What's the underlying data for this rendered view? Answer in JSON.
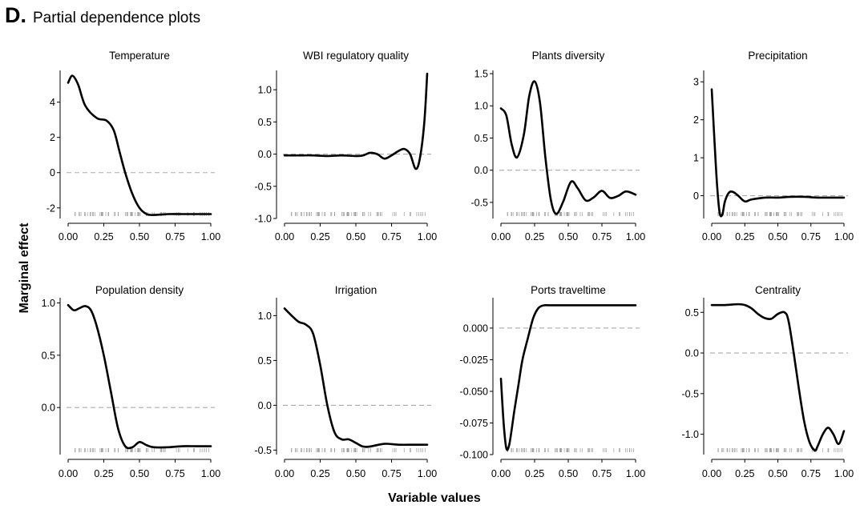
{
  "header": {
    "letter": "D.",
    "title": "Partial dependence plots"
  },
  "ylabel": "Marginal effect",
  "xlabel": "Variable values",
  "chart_data": [
    {
      "type": "line",
      "title": "Temperature",
      "xticks": [
        "0.00",
        "0.25",
        "0.50",
        "0.75",
        "1.00"
      ],
      "yticks": [
        {
          "v": 4,
          "l": "4"
        },
        {
          "v": 2,
          "l": "2"
        },
        {
          "v": 0,
          "l": "0"
        },
        {
          "v": -2,
          "l": "-2"
        }
      ],
      "xlim": [
        0,
        1
      ],
      "ylim": [
        -2.6,
        5.8
      ],
      "reference_line": 0,
      "x": [
        0,
        0.03,
        0.07,
        0.12,
        0.2,
        0.27,
        0.32,
        0.36,
        0.4,
        0.45,
        0.5,
        0.55,
        0.6,
        0.7,
        0.8,
        0.9,
        1.0
      ],
      "y": [
        5.1,
        5.5,
        5.0,
        3.8,
        3.1,
        2.95,
        2.4,
        1.2,
        0.0,
        -1.2,
        -2.0,
        -2.35,
        -2.4,
        -2.35,
        -2.35,
        -2.35,
        -2.35
      ]
    },
    {
      "type": "line",
      "title": "WBI regulatory quality",
      "xticks": [
        "0.00",
        "0.25",
        "0.50",
        "0.75",
        "1.00"
      ],
      "yticks": [
        {
          "v": 1.0,
          "l": "1.0"
        },
        {
          "v": 0.5,
          "l": "0.5"
        },
        {
          "v": 0.0,
          "l": "0.0"
        },
        {
          "v": -0.5,
          "l": "-0.5"
        },
        {
          "v": -1.0,
          "l": "-1.0"
        }
      ],
      "xlim": [
        0,
        1
      ],
      "ylim": [
        -1.0,
        1.3
      ],
      "reference_line": 0,
      "x": [
        0,
        0.1,
        0.2,
        0.3,
        0.4,
        0.5,
        0.55,
        0.6,
        0.65,
        0.7,
        0.75,
        0.8,
        0.84,
        0.88,
        0.92,
        0.95,
        0.98,
        1.0
      ],
      "y": [
        -0.02,
        -0.02,
        -0.02,
        -0.03,
        -0.02,
        -0.03,
        -0.02,
        0.02,
        0.0,
        -0.07,
        -0.02,
        0.05,
        0.08,
        0.0,
        -0.23,
        -0.05,
        0.5,
        1.25
      ]
    },
    {
      "type": "line",
      "title": "Plants diversity",
      "xticks": [
        "0.00",
        "0.25",
        "0.50",
        "0.75",
        "1.00"
      ],
      "yticks": [
        {
          "v": 1.5,
          "l": "1.5"
        },
        {
          "v": 1.0,
          "l": "1.0"
        },
        {
          "v": 0.5,
          "l": "0.5"
        },
        {
          "v": 0.0,
          "l": "0.0"
        },
        {
          "v": -0.5,
          "l": "-0.5"
        }
      ],
      "xlim": [
        0,
        1
      ],
      "ylim": [
        -0.75,
        1.55
      ],
      "reference_line": 0,
      "x": [
        0,
        0.04,
        0.08,
        0.12,
        0.17,
        0.21,
        0.25,
        0.29,
        0.33,
        0.37,
        0.41,
        0.46,
        0.52,
        0.57,
        0.63,
        0.69,
        0.75,
        0.81,
        0.87,
        0.93,
        1.0
      ],
      "y": [
        0.96,
        0.85,
        0.4,
        0.2,
        0.55,
        1.15,
        1.38,
        1.05,
        0.2,
        -0.45,
        -0.68,
        -0.5,
        -0.18,
        -0.28,
        -0.47,
        -0.42,
        -0.32,
        -0.43,
        -0.4,
        -0.33,
        -0.38
      ]
    },
    {
      "type": "line",
      "title": "Precipitation",
      "xticks": [
        "0.00",
        "0.25",
        "0.50",
        "0.75",
        "1.00"
      ],
      "yticks": [
        {
          "v": 3,
          "l": "3"
        },
        {
          "v": 2,
          "l": "2"
        },
        {
          "v": 1,
          "l": "1"
        },
        {
          "v": 0,
          "l": "0"
        }
      ],
      "xlim": [
        0,
        1
      ],
      "ylim": [
        -0.6,
        3.3
      ],
      "reference_line": 0,
      "x": [
        0,
        0.02,
        0.04,
        0.06,
        0.08,
        0.1,
        0.13,
        0.16,
        0.2,
        0.25,
        0.3,
        0.4,
        0.5,
        0.6,
        0.7,
        0.8,
        0.9,
        1.0
      ],
      "y": [
        2.8,
        1.5,
        0.3,
        -0.45,
        -0.5,
        -0.15,
        0.08,
        0.1,
        0.0,
        -0.15,
        -0.1,
        -0.05,
        -0.05,
        -0.03,
        -0.03,
        -0.05,
        -0.05,
        -0.05
      ]
    },
    {
      "type": "line",
      "title": "Population density",
      "xticks": [
        "0.00",
        "0.25",
        "0.50",
        "0.75",
        "1.00"
      ],
      "yticks": [
        {
          "v": 1.0,
          "l": "1.0"
        },
        {
          "v": 0.5,
          "l": "0.5"
        },
        {
          "v": 0.0,
          "l": "0.0"
        }
      ],
      "xlim": [
        0,
        1
      ],
      "ylim": [
        -0.45,
        1.05
      ],
      "reference_line": 0,
      "x": [
        0,
        0.04,
        0.08,
        0.12,
        0.16,
        0.2,
        0.25,
        0.3,
        0.35,
        0.4,
        0.45,
        0.5,
        0.55,
        0.6,
        0.7,
        0.8,
        0.9,
        1.0
      ],
      "y": [
        0.98,
        0.93,
        0.95,
        0.97,
        0.93,
        0.78,
        0.5,
        0.15,
        -0.2,
        -0.37,
        -0.38,
        -0.33,
        -0.36,
        -0.38,
        -0.38,
        -0.37,
        -0.37,
        -0.37
      ]
    },
    {
      "type": "line",
      "title": "Irrigation",
      "xticks": [
        "0.00",
        "0.25",
        "0.50",
        "0.75",
        "1.00"
      ],
      "yticks": [
        {
          "v": 1.0,
          "l": "1.0"
        },
        {
          "v": 0.5,
          "l": "0.5"
        },
        {
          "v": 0.0,
          "l": "0.0"
        },
        {
          "v": -0.5,
          "l": "-0.5"
        }
      ],
      "xlim": [
        0,
        1
      ],
      "ylim": [
        -0.55,
        1.2
      ],
      "reference_line": 0,
      "x": [
        0,
        0.05,
        0.1,
        0.15,
        0.2,
        0.25,
        0.3,
        0.35,
        0.4,
        0.45,
        0.5,
        0.55,
        0.6,
        0.7,
        0.8,
        0.9,
        1.0
      ],
      "y": [
        1.08,
        1.0,
        0.93,
        0.9,
        0.8,
        0.45,
        0.0,
        -0.3,
        -0.38,
        -0.38,
        -0.42,
        -0.46,
        -0.46,
        -0.43,
        -0.44,
        -0.44,
        -0.44
      ]
    },
    {
      "type": "line",
      "title": "Ports traveltime",
      "xticks": [
        "0.00",
        "0.25",
        "0.50",
        "0.75",
        "1.00"
      ],
      "yticks": [
        {
          "v": 0.0,
          "l": "0.000"
        },
        {
          "v": -0.025,
          "l": "-0.025"
        },
        {
          "v": -0.05,
          "l": "-0.050"
        },
        {
          "v": -0.075,
          "l": "-0.075"
        },
        {
          "v": -0.1,
          "l": "-0.100"
        }
      ],
      "xlim": [
        0,
        1
      ],
      "ylim": [
        -0.1,
        0.024
      ],
      "reference_line": 0,
      "x": [
        0,
        0.02,
        0.04,
        0.06,
        0.08,
        0.1,
        0.13,
        0.16,
        0.2,
        0.24,
        0.28,
        0.32,
        0.36,
        0.45,
        0.6,
        0.8,
        1.0
      ],
      "y": [
        -0.04,
        -0.075,
        -0.095,
        -0.093,
        -0.08,
        -0.065,
        -0.045,
        -0.025,
        -0.008,
        0.008,
        0.016,
        0.018,
        0.018,
        0.018,
        0.018,
        0.018,
        0.018
      ]
    },
    {
      "type": "line",
      "title": "Centrality",
      "xticks": [
        "0.00",
        "0.25",
        "0.50",
        "0.75",
        "1.00"
      ],
      "yticks": [
        {
          "v": 0.5,
          "l": "0.5"
        },
        {
          "v": 0.0,
          "l": "0.0"
        },
        {
          "v": -0.5,
          "l": "-0.5"
        },
        {
          "v": -1.0,
          "l": "-1.0"
        }
      ],
      "xlim": [
        0,
        1
      ],
      "ylim": [
        -1.25,
        0.68
      ],
      "reference_line": 0,
      "x": [
        0,
        0.1,
        0.2,
        0.25,
        0.3,
        0.35,
        0.4,
        0.45,
        0.5,
        0.55,
        0.58,
        0.62,
        0.66,
        0.7,
        0.74,
        0.78,
        0.8,
        0.84,
        0.88,
        0.92,
        0.96,
        1.0
      ],
      "y": [
        0.59,
        0.59,
        0.6,
        0.59,
        0.55,
        0.48,
        0.43,
        0.42,
        0.48,
        0.5,
        0.4,
        0.0,
        -0.45,
        -0.85,
        -1.1,
        -1.2,
        -1.15,
        -1.0,
        -0.92,
        -1.0,
        -1.12,
        -0.96
      ]
    }
  ]
}
